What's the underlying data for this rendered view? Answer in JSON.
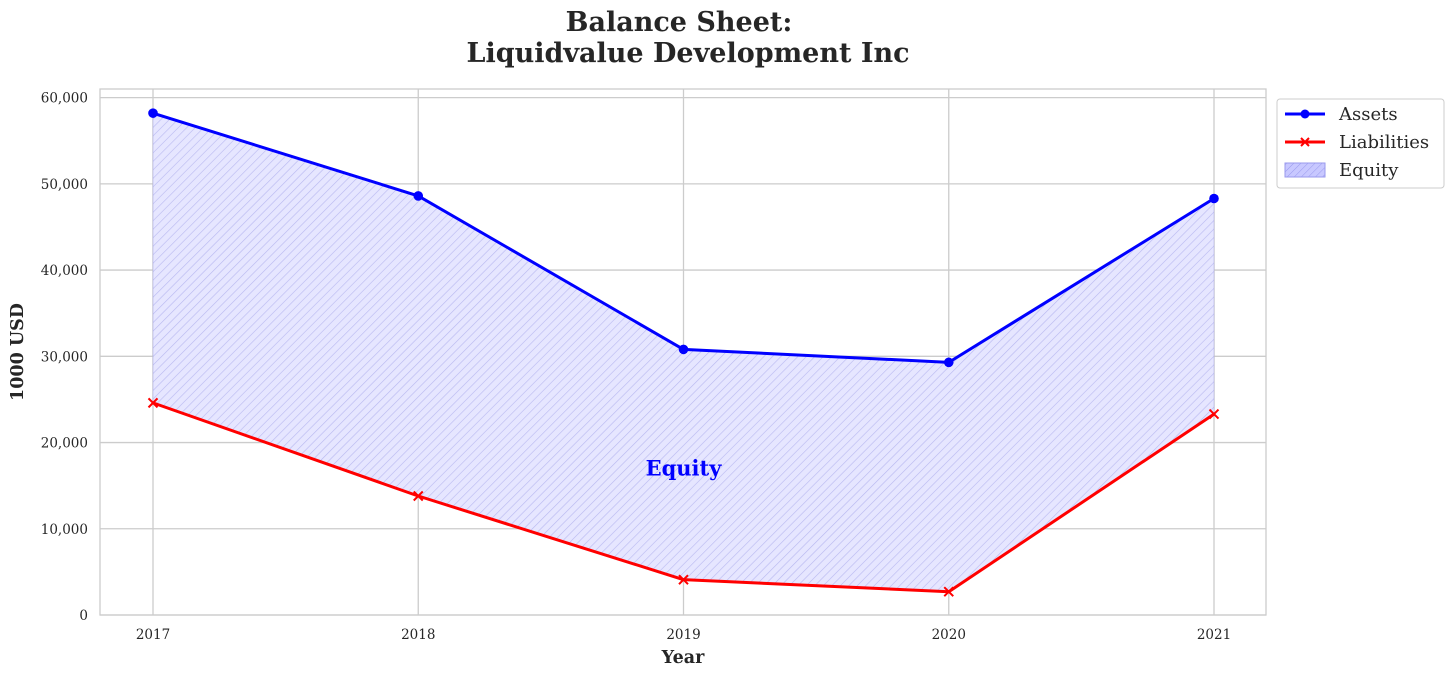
{
  "chart_data": {
    "type": "line",
    "title_line1": "Balance Sheet:",
    "title_line2": "Liquidvalue Development Inc",
    "xlabel": "Year",
    "ylabel": "1000 USD",
    "categories": [
      "2017",
      "2018",
      "2019",
      "2020",
      "2021"
    ],
    "y_ticks": [
      0,
      10000,
      20000,
      30000,
      40000,
      50000,
      60000
    ],
    "y_tick_labels": [
      "0",
      "10,000",
      "20,000",
      "30,000",
      "40,000",
      "50,000",
      "60,000"
    ],
    "ylim": [
      0,
      61000
    ],
    "grid": true,
    "legend_position": "outside top-right",
    "series": [
      {
        "name": "Assets",
        "values": [
          58200,
          48600,
          30800,
          29300,
          48300
        ],
        "color": "#0000ff",
        "marker": "circle"
      },
      {
        "name": "Liabilities",
        "values": [
          24600,
          13800,
          4100,
          2700,
          23300
        ],
        "color": "#ff0000",
        "marker": "x"
      }
    ],
    "fill": {
      "name": "Equity",
      "between": [
        "Assets",
        "Liabilities"
      ],
      "color": "#0000ff",
      "hatch": "diagonal"
    },
    "annotation": {
      "text": "Equity",
      "x_index": 2,
      "y": 17000,
      "color": "#0000ff"
    }
  }
}
